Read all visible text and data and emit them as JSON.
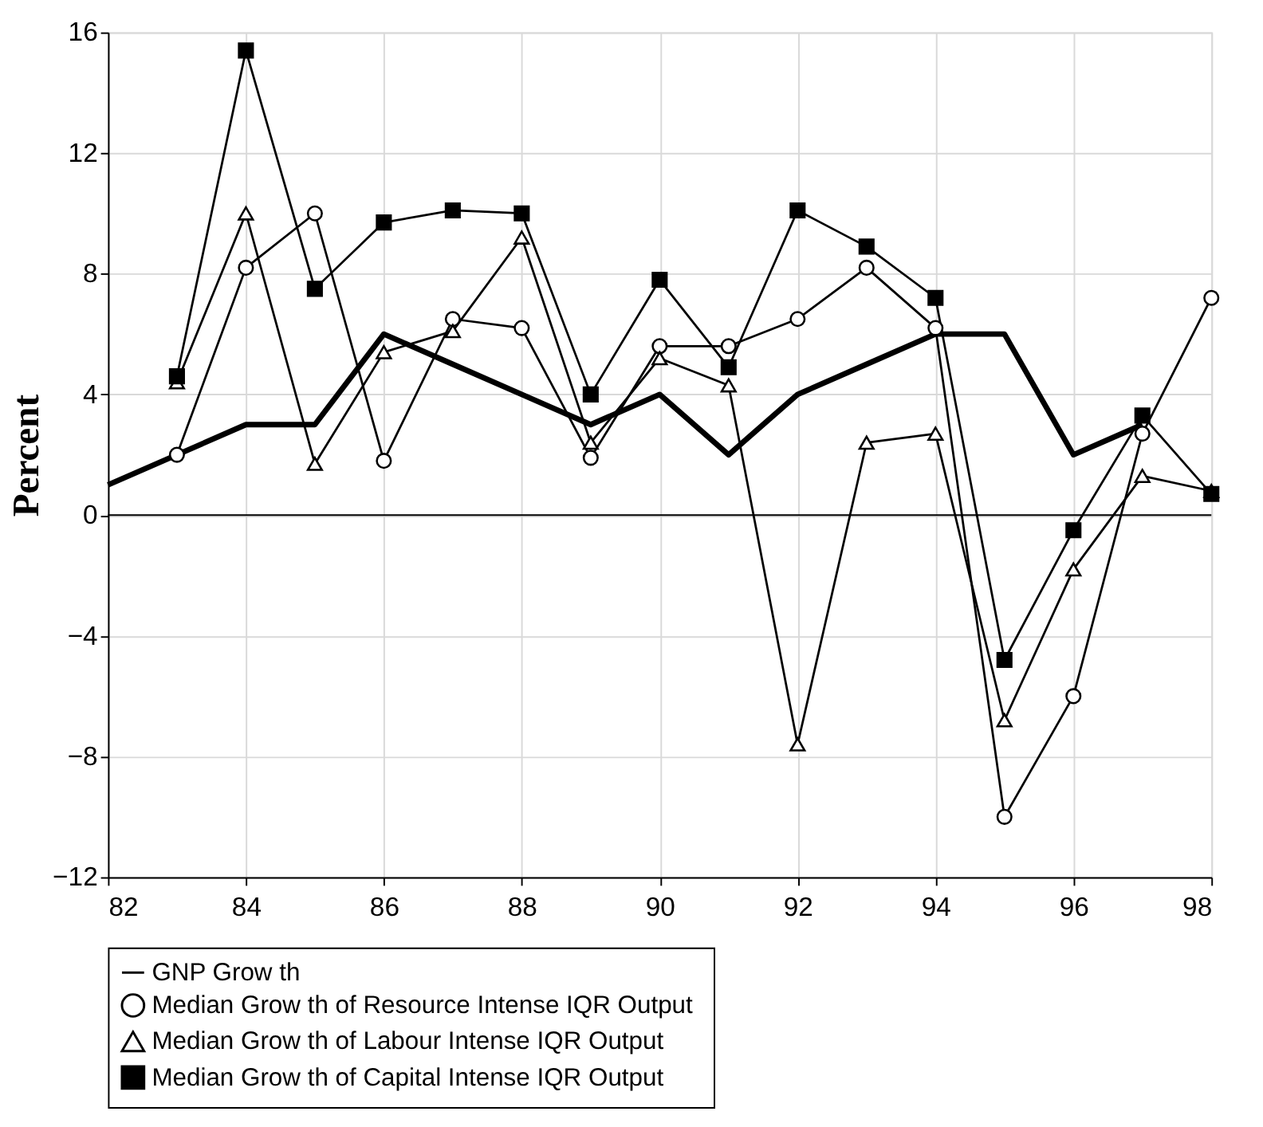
{
  "chart_data": {
    "type": "line",
    "ylabel": "Percent",
    "x": [
      82,
      83,
      84,
      85,
      86,
      87,
      88,
      89,
      90,
      91,
      92,
      93,
      94,
      95,
      96,
      97,
      98
    ],
    "xlim": [
      82,
      98
    ],
    "xticks": [
      82,
      84,
      86,
      88,
      90,
      92,
      94,
      96,
      98
    ],
    "ylim": [
      -12,
      16
    ],
    "yticks": [
      -12,
      -8,
      -4,
      0,
      4,
      8,
      12,
      16
    ],
    "grid": true,
    "legend": "bottom",
    "ref_lines": [
      {
        "axis": "y",
        "value": 0,
        "color": "#000000"
      }
    ],
    "series": [
      {
        "name": "GNP Grow th",
        "color": "#000000",
        "marker": "none",
        "values": [
          1,
          2,
          3,
          3,
          6,
          5,
          4,
          3,
          4,
          2,
          4,
          5,
          6,
          6,
          2,
          3,
          null
        ]
      },
      {
        "name": "Median Grow th of Resource Intense  IQR Output",
        "color": "#000000",
        "marker": "circle",
        "values": [
          null,
          2,
          8.2,
          10,
          1.8,
          6.5,
          6.2,
          1.9,
          5.6,
          5.6,
          6.5,
          8.2,
          6.2,
          -10,
          -6,
          2.7,
          7.2
        ]
      },
      {
        "name": "Median Grow th of Labour Intense IQR Output",
        "color": "#000000",
        "marker": "triangle",
        "values": [
          null,
          4.4,
          10,
          1.7,
          5.4,
          6.1,
          9.2,
          2.4,
          5.2,
          4.3,
          -7.6,
          2.4,
          2.7,
          -6.8,
          -1.8,
          1.3,
          0.8
        ]
      },
      {
        "name": "Median Grow th of Capital Intense IQR Output",
        "color": "#000000",
        "marker": "square",
        "values": [
          null,
          4.6,
          15.4,
          7.5,
          9.7,
          10.1,
          10,
          4,
          7.8,
          4.9,
          10.1,
          8.9,
          7.2,
          -4.8,
          -0.5,
          3.3,
          0.7
        ]
      }
    ]
  }
}
